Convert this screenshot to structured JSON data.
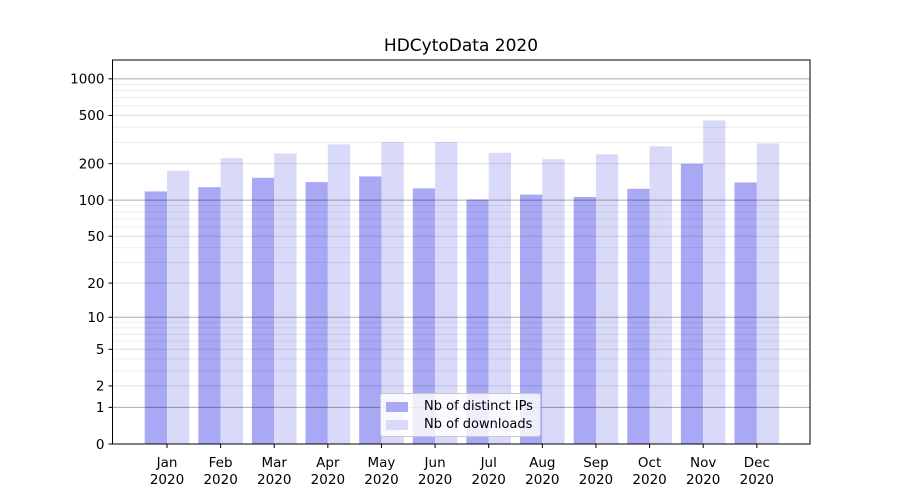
{
  "chart_data": {
    "type": "bar",
    "title": "HDCytoData 2020",
    "categories": [
      "Jan 2020",
      "Feb 2020",
      "Mar 2020",
      "Apr 2020",
      "May 2020",
      "Jun 2020",
      "Jul 2020",
      "Aug 2020",
      "Sep 2020",
      "Oct 2020",
      "Nov 2020",
      "Dec 2020"
    ],
    "x_months": [
      "Jan",
      "Feb",
      "Mar",
      "Apr",
      "May",
      "Jun",
      "Jul",
      "Aug",
      "Sep",
      "Oct",
      "Nov",
      "Dec"
    ],
    "x_year": "2020",
    "series": [
      {
        "name": "Nb of distinct IPs",
        "color": "#a8a8f4",
        "values": [
          118,
          128,
          153,
          141,
          157,
          125,
          101,
          111,
          106,
          124,
          200,
          140
        ]
      },
      {
        "name": "Nb of downloads",
        "color": "#d9d9f9",
        "values": [
          175,
          222,
          243,
          289,
          302,
          302,
          246,
          218,
          239,
          278,
          455,
          294
        ]
      }
    ],
    "yscale": "log1p",
    "yticks": [
      0,
      1,
      2,
      5,
      10,
      20,
      50,
      100,
      200,
      500,
      1000
    ],
    "ylim": [
      0,
      1430
    ],
    "xlabel": "",
    "ylabel": "",
    "grid": true,
    "legend_position": "lower center"
  },
  "colors": {
    "grid_decade": "#a8a8a8",
    "grid_labeled": "#dddddd",
    "grid_minor": "#e9e9e9",
    "spine": "#000000",
    "text": "#000000"
  }
}
